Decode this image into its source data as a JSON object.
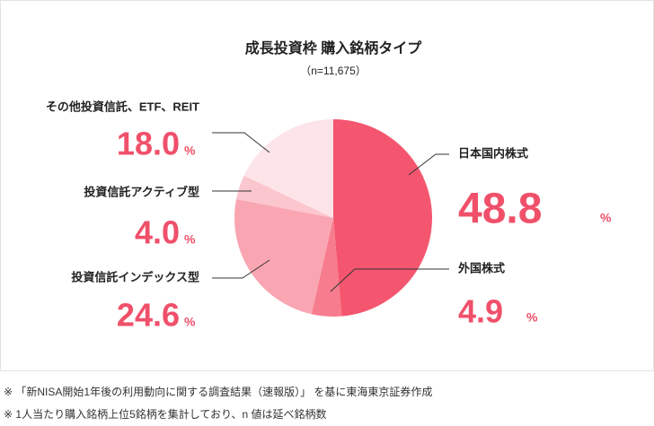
{
  "chart_data": {
    "type": "pie",
    "title": "成長投資枠 購入銘柄タイプ",
    "subtitle": "（n=11,675）",
    "unit": "%",
    "categories": [
      "日本国内株式",
      "外国株式",
      "投資信託インデックス型",
      "投資信託アクティブ型",
      "その他投資信託、ETF、REIT"
    ],
    "values": [
      48.8,
      4.9,
      24.6,
      4.0,
      18.0
    ],
    "value_labels": [
      "48.8",
      "4.9",
      "24.6",
      "4.0",
      "18.0"
    ],
    "colors": [
      "#f5566f",
      "#f77c8d",
      "#f9a6b2",
      "#fbc6cd",
      "#fde4e8"
    ]
  },
  "notes": [
    "※ 「新NISA開始1年後の利用動向に関する調査結果（速報版）」 を基に東海東京証券作成",
    "※ 1人当たり購入銘柄上位5銘柄を集計しており、n 値は延べ銘柄数"
  ]
}
